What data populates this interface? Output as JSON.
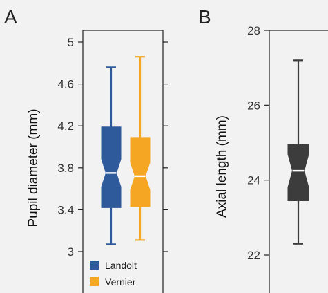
{
  "chart_data": [
    {
      "panel": "A",
      "type": "box",
      "ylabel": "Pupil diameter (mm)",
      "ylim": [
        3,
        5.05
      ],
      "yticks": [
        3,
        3.4,
        3.8,
        4.2,
        4.6,
        5
      ],
      "ytick_labels": [
        "3",
        "3.4",
        "3.8",
        "4.2",
        "4.6",
        "5"
      ],
      "legend_position": "bottom-left",
      "series": [
        {
          "name": "Landolt",
          "color": "#2e5a9c",
          "whisker_low": 3.07,
          "q1": 3.42,
          "median": 3.75,
          "q3": 4.19,
          "whisker_high": 4.76
        },
        {
          "name": "Vernier",
          "color": "#f5a623",
          "whisker_low": 3.11,
          "q1": 3.43,
          "median": 3.72,
          "q3": 4.09,
          "whisker_high": 4.86
        }
      ]
    },
    {
      "panel": "B",
      "type": "box",
      "ylabel": "Axial length (mm)",
      "ylim": [
        22,
        28
      ],
      "yticks": [
        22,
        24,
        26,
        28
      ],
      "ytick_labels": [
        "22",
        "24",
        "26",
        "28"
      ],
      "series": [
        {
          "color": "#3c3c3c",
          "whisker_low": 22.3,
          "q1": 23.45,
          "median": 24.25,
          "q3": 24.95,
          "whisker_high": 27.2
        }
      ]
    }
  ]
}
